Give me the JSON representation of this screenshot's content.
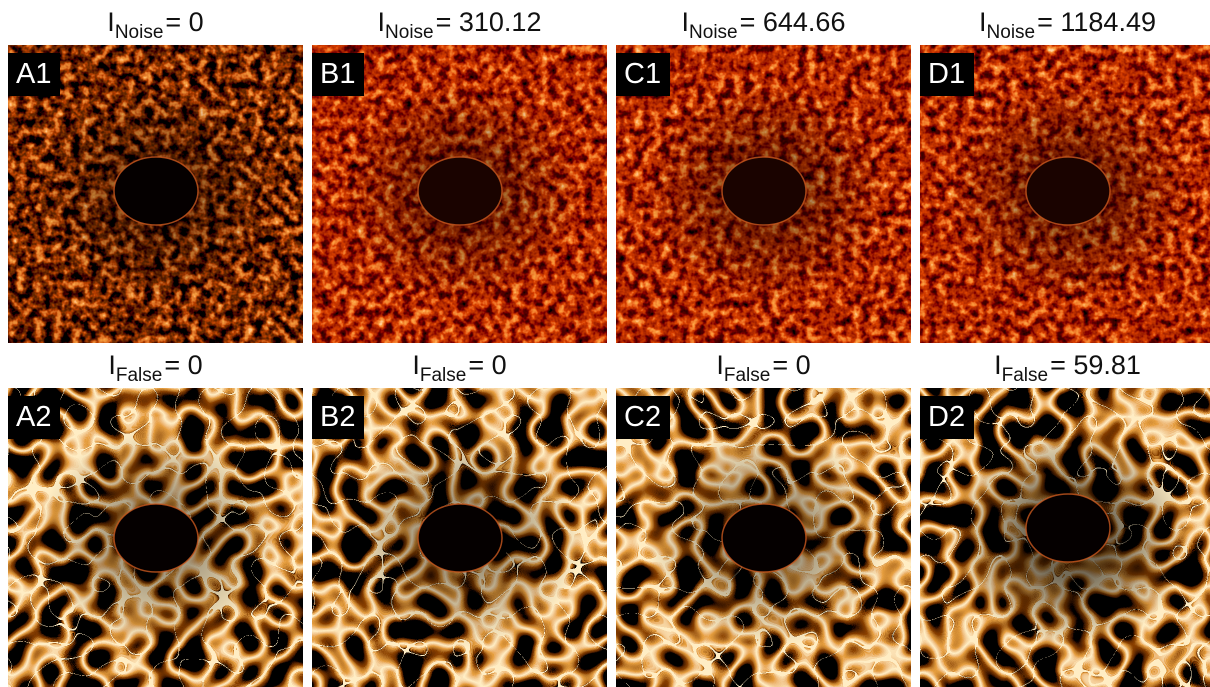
{
  "rows": [
    [
      {
        "label": "A1",
        "title": {
          "main": "I",
          "sub": "Noise",
          "rest": "= 0"
        }
      },
      {
        "label": "B1",
        "title": {
          "main": "I",
          "sub": "Noise",
          "rest": "= 310.12"
        }
      },
      {
        "label": "C1",
        "title": {
          "main": "I",
          "sub": "Noise",
          "rest": "= 644.66"
        }
      },
      {
        "label": "D1",
        "title": {
          "main": "I",
          "sub": "Noise",
          "rest": "= 1184.49"
        }
      }
    ],
    [
      {
        "label": "A2",
        "title": {
          "main": "I",
          "sub": "False",
          "rest": "= 0"
        }
      },
      {
        "label": "B2",
        "title": {
          "main": "I",
          "sub": "False",
          "rest": "= 0"
        }
      },
      {
        "label": "C2",
        "title": {
          "main": "I",
          "sub": "False",
          "rest": "= 0"
        }
      },
      {
        "label": "D2",
        "title": {
          "main": "I",
          "sub": "False",
          "rest": "= 59.81"
        }
      }
    ]
  ]
}
